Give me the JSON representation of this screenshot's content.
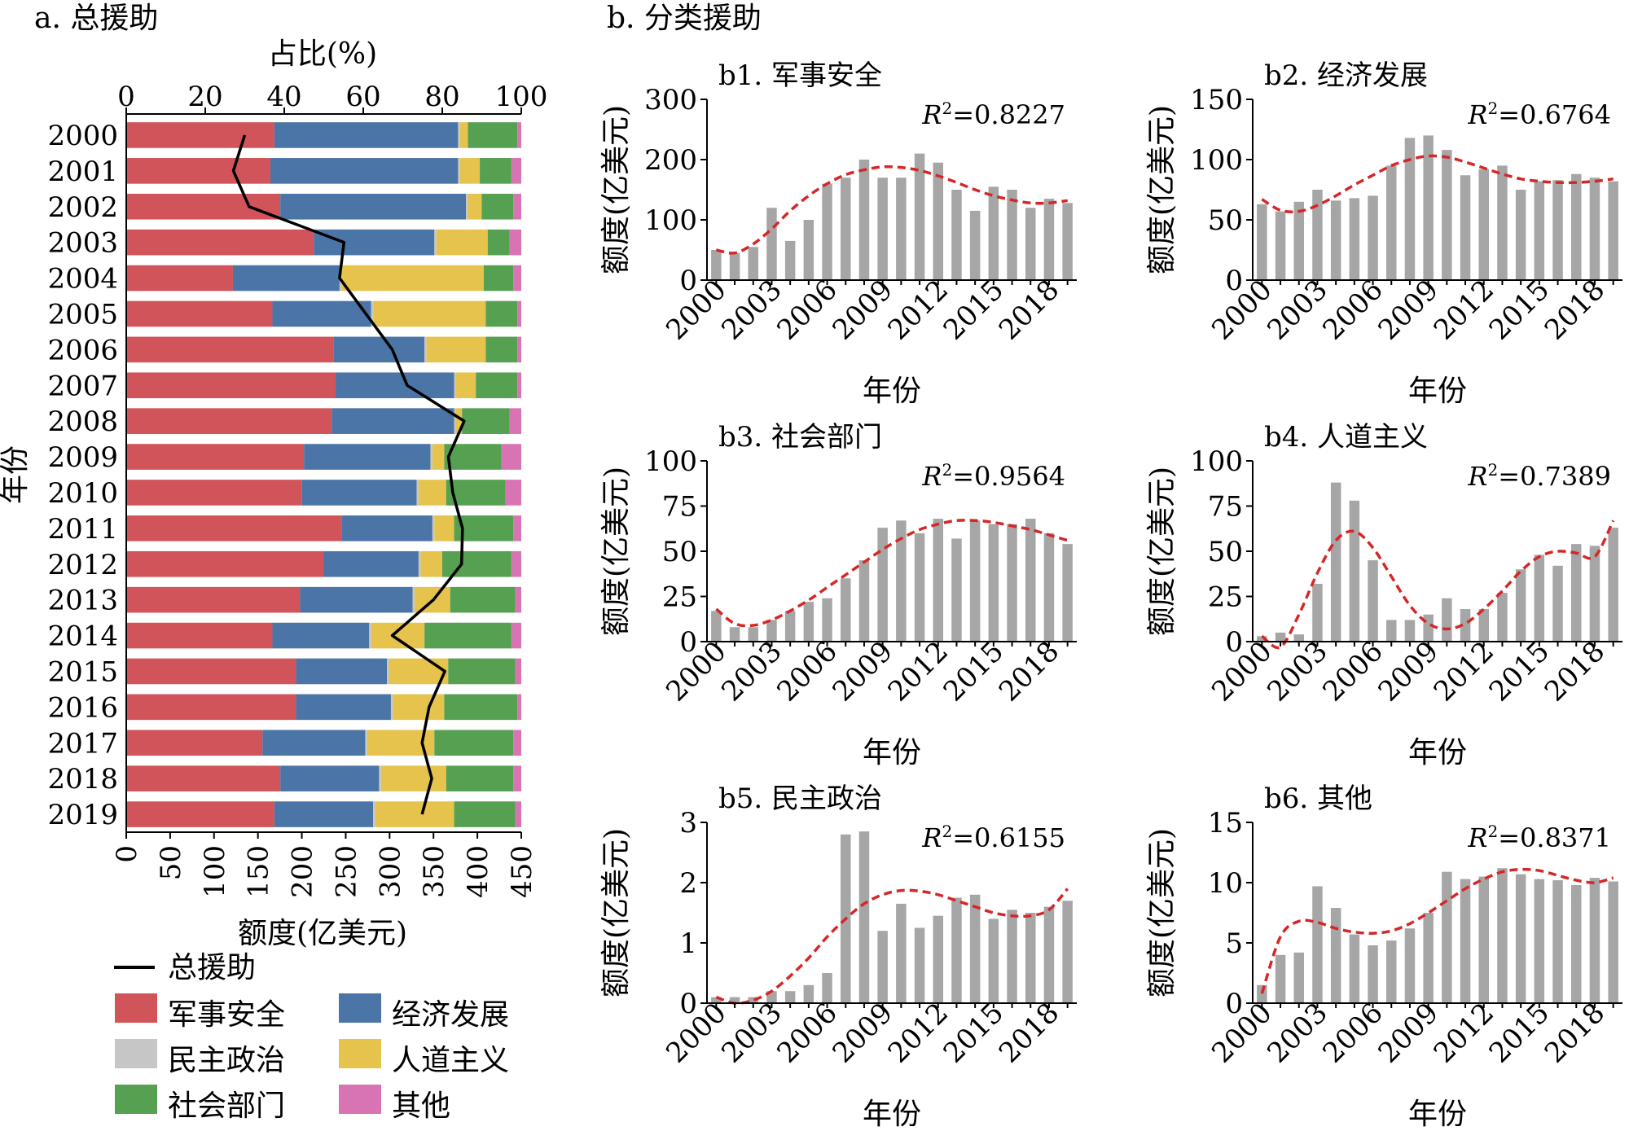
{
  "panel_a": {
    "title": "a. 总援助",
    "top_axis_label": "占比(%)",
    "bottom_axis_label": "额度(亿美元)",
    "y_axis_label": "年份"
  },
  "panel_b": {
    "title": "b. 分类援助"
  },
  "legend": {
    "items": [
      {
        "label": "总援助",
        "kind": "line",
        "color": "#000000"
      },
      {
        "label": "军事安全",
        "kind": "box",
        "color": "#d05459"
      },
      {
        "label": "经济发展",
        "kind": "box",
        "color": "#4a75a6"
      },
      {
        "label": "民主政治",
        "kind": "box",
        "color": "#c6c6c6"
      },
      {
        "label": "人道主义",
        "kind": "box",
        "color": "#e5c34d"
      },
      {
        "label": "社会部门",
        "kind": "box",
        "color": "#55a051"
      },
      {
        "label": "其他",
        "kind": "box",
        "color": "#d974b4"
      }
    ]
  },
  "chart_data": [
    {
      "id": "a",
      "type": "bar",
      "orientation": "horizontal-stacked-percent",
      "title": "a. 总援助",
      "categories": [
        "2000",
        "2001",
        "2002",
        "2003",
        "2004",
        "2005",
        "2006",
        "2007",
        "2008",
        "2009",
        "2010",
        "2011",
        "2012",
        "2013",
        "2014",
        "2015",
        "2016",
        "2017",
        "2018",
        "2019"
      ],
      "pct_axis": {
        "label": "占比(%)",
        "lim": [
          0,
          100
        ],
        "ticks": [
          "0",
          "20",
          "40",
          "60",
          "80",
          "100"
        ]
      },
      "amount_axis": {
        "label": "额度(亿美元)",
        "lim": [
          0,
          450
        ],
        "ticks": [
          "0",
          "50",
          "100",
          "150",
          "200",
          "250",
          "300",
          "350",
          "400",
          "450"
        ]
      },
      "ylabel": "年份",
      "colors": {
        "军事安全": "#d05459",
        "经济发展": "#4a75a6",
        "民主政治": "#c6c6c6",
        "人道主义": "#e5c34d",
        "社会部门": "#55a051",
        "其他": "#d974b4"
      },
      "series": [
        {
          "name": "军事安全",
          "values": [
            37.5,
            36.5,
            39,
            47.5,
            27,
            37,
            52.5,
            53,
            52,
            45,
            44.5,
            54.5,
            50,
            44,
            37,
            43,
            43,
            34.5,
            39,
            37.5
          ]
        },
        {
          "name": "经济发展",
          "values": [
            46.5,
            47.5,
            47,
            30.5,
            27,
            25,
            23,
            30,
            31,
            32,
            29,
            23,
            24,
            28.5,
            24.5,
            23,
            24,
            26,
            25,
            25
          ]
        },
        {
          "name": "民主政治",
          "values": [
            0.5,
            0.5,
            0.5,
            0.5,
            0.5,
            0.5,
            0.5,
            0.5,
            0.5,
            0.5,
            0.5,
            0.5,
            0.5,
            0.5,
            0.5,
            0.5,
            0.5,
            0.5,
            0.5,
            0.5
          ]
        },
        {
          "name": "人道主义",
          "values": [
            2,
            5,
            3.5,
            13,
            36,
            28.5,
            15,
            5,
            1.5,
            3,
            7,
            5,
            5.5,
            9,
            13.5,
            15,
            13,
            17,
            16.5,
            20
          ]
        },
        {
          "name": "社会部门",
          "values": [
            12.5,
            8,
            8,
            5.5,
            7.5,
            8,
            8,
            10.5,
            12,
            14.5,
            15,
            15,
            17.5,
            16.5,
            22,
            17,
            18.5,
            20,
            17,
            15.5
          ]
        },
        {
          "name": "其他",
          "values": [
            1,
            2.5,
            2,
            3,
            2,
            1,
            1,
            1,
            3,
            5,
            4,
            2,
            2.5,
            1.5,
            2.5,
            1.5,
            1,
            2,
            2,
            1.5
          ]
        }
      ],
      "total_line": {
        "name": "总援助",
        "values": [
          135,
          122,
          140,
          248,
          243,
          273,
          303,
          320,
          385,
          367,
          372,
          383,
          382,
          350,
          303,
          363,
          345,
          337,
          348,
          337
        ],
        "color": "#000000"
      }
    },
    {
      "id": "b1",
      "type": "bar",
      "title": "b1. 军事安全",
      "r2_prefix": "R",
      "r2_exp": "2",
      "r2_value": "=0.8227",
      "x": [
        2000,
        2001,
        2002,
        2003,
        2004,
        2005,
        2006,
        2007,
        2008,
        2009,
        2010,
        2011,
        2012,
        2013,
        2014,
        2015,
        2016,
        2017,
        2018,
        2019
      ],
      "values": [
        50,
        45,
        55,
        120,
        65,
        100,
        160,
        170,
        200,
        170,
        170,
        210,
        195,
        150,
        115,
        155,
        150,
        120,
        135,
        128
      ],
      "trend": [
        50,
        45,
        60,
        85,
        115,
        140,
        160,
        175,
        183,
        188,
        187,
        182,
        173,
        162,
        150,
        140,
        133,
        128,
        128,
        132
      ],
      "ylim": [
        0,
        300
      ],
      "yticks": [
        0,
        100,
        200,
        300
      ],
      "xticks": [
        2000,
        2003,
        2006,
        2009,
        2012,
        2015,
        2018
      ],
      "xlabel": "年份",
      "ylabel": "额度(亿美元)"
    },
    {
      "id": "b2",
      "type": "bar",
      "title": "b2. 经济发展",
      "r2_prefix": "R",
      "r2_exp": "2",
      "r2_value": "=0.6764",
      "x": [
        2000,
        2001,
        2002,
        2003,
        2004,
        2005,
        2006,
        2007,
        2008,
        2009,
        2010,
        2011,
        2012,
        2013,
        2014,
        2015,
        2016,
        2017,
        2018,
        2019
      ],
      "values": [
        63,
        57,
        65,
        75,
        66,
        68,
        70,
        95,
        118,
        120,
        108,
        87,
        92,
        95,
        75,
        82,
        83,
        88,
        85,
        82
      ],
      "trend": [
        67,
        58,
        57,
        62,
        70,
        79,
        87,
        95,
        100,
        103,
        102,
        98,
        93,
        88,
        84,
        82,
        81,
        81,
        82,
        84
      ],
      "ylim": [
        0,
        150
      ],
      "yticks": [
        0,
        50,
        100,
        150
      ],
      "xticks": [
        2000,
        2003,
        2006,
        2009,
        2012,
        2015,
        2018
      ],
      "xlabel": "年份",
      "ylabel": "额度(亿美元)"
    },
    {
      "id": "b3",
      "type": "bar",
      "title": "b3. 社会部门",
      "r2_prefix": "R",
      "r2_exp": "2",
      "r2_value": "=0.9564",
      "x": [
        2000,
        2001,
        2002,
        2003,
        2004,
        2005,
        2006,
        2007,
        2008,
        2009,
        2010,
        2011,
        2012,
        2013,
        2014,
        2015,
        2016,
        2017,
        2018,
        2019
      ],
      "values": [
        17,
        8,
        8,
        12,
        17,
        22,
        24,
        35,
        45,
        63,
        67,
        60,
        68,
        57,
        67,
        65,
        65,
        68,
        60,
        54
      ],
      "trend": [
        18,
        10,
        9,
        12,
        17,
        23,
        30,
        37,
        44,
        51,
        57,
        62,
        65,
        67,
        67,
        66,
        64,
        62,
        59,
        56
      ],
      "ylim": [
        0,
        100
      ],
      "yticks": [
        0,
        25,
        50,
        75,
        100
      ],
      "xticks": [
        2000,
        2003,
        2006,
        2009,
        2012,
        2015,
        2018
      ],
      "xlabel": "年份",
      "ylabel": "额度(亿美元)"
    },
    {
      "id": "b4",
      "type": "bar",
      "title": "b4. 人道主义",
      "r2_prefix": "R",
      "r2_exp": "2",
      "r2_value": "=0.7389",
      "x": [
        2000,
        2001,
        2002,
        2003,
        2004,
        2005,
        2006,
        2007,
        2008,
        2009,
        2010,
        2011,
        2012,
        2013,
        2014,
        2015,
        2016,
        2017,
        2018,
        2019
      ],
      "values": [
        3,
        5,
        4,
        32,
        88,
        78,
        45,
        12,
        12,
        15,
        24,
        18,
        18,
        27,
        40,
        48,
        42,
        54,
        53,
        63
      ],
      "trend": [
        3,
        -3,
        15,
        38,
        56,
        61,
        52,
        36,
        20,
        10,
        7,
        10,
        18,
        28,
        39,
        47,
        50,
        49,
        47,
        67
      ],
      "ylim": [
        0,
        100
      ],
      "yticks": [
        0,
        25,
        50,
        75,
        100
      ],
      "xticks": [
        2000,
        2003,
        2006,
        2009,
        2012,
        2015,
        2018
      ],
      "xlabel": "年份",
      "ylabel": "额度(亿美元)"
    },
    {
      "id": "b5",
      "type": "bar",
      "title": "b5. 民主政治",
      "r2_prefix": "R",
      "r2_exp": "2",
      "r2_value": "=0.6155",
      "x": [
        2000,
        2001,
        2002,
        2003,
        2004,
        2005,
        2006,
        2007,
        2008,
        2009,
        2010,
        2011,
        2012,
        2013,
        2014,
        2015,
        2016,
        2017,
        2018,
        2019
      ],
      "values": [
        0.1,
        0.1,
        0.1,
        0.2,
        0.2,
        0.3,
        0.5,
        2.8,
        2.85,
        1.2,
        1.65,
        1.25,
        1.45,
        1.75,
        1.8,
        1.4,
        1.55,
        1.5,
        1.6,
        1.7
      ],
      "trend": [
        0.1,
        0.0,
        0.05,
        0.2,
        0.45,
        0.75,
        1.1,
        1.4,
        1.65,
        1.8,
        1.87,
        1.86,
        1.8,
        1.7,
        1.6,
        1.5,
        1.45,
        1.45,
        1.55,
        1.9
      ],
      "ylim": [
        0,
        3
      ],
      "yticks": [
        0,
        1,
        2,
        3
      ],
      "xticks": [
        2000,
        2003,
        2006,
        2009,
        2012,
        2015,
        2018
      ],
      "xlabel": "年份",
      "ylabel": "额度(亿美元)"
    },
    {
      "id": "b6",
      "type": "bar",
      "title": "b6. 其他",
      "r2_prefix": "R",
      "r2_exp": "2",
      "r2_value": "=0.8371",
      "x": [
        2000,
        2001,
        2002,
        2003,
        2004,
        2005,
        2006,
        2007,
        2008,
        2009,
        2010,
        2011,
        2012,
        2013,
        2014,
        2015,
        2016,
        2017,
        2018,
        2019
      ],
      "values": [
        1.5,
        4,
        4.2,
        9.7,
        7.9,
        5.7,
        4.8,
        5.2,
        6.2,
        7.5,
        10.9,
        10.3,
        10.5,
        11.2,
        10.7,
        10.3,
        10.2,
        9.8,
        10.4,
        10.1
      ],
      "trend": [
        0.8,
        5.5,
        6.8,
        6.7,
        6.2,
        5.9,
        5.8,
        6.0,
        6.6,
        7.5,
        8.5,
        9.5,
        10.3,
        10.9,
        11.1,
        11.0,
        10.6,
        10.2,
        10.0,
        10.4
      ],
      "ylim": [
        0,
        15
      ],
      "yticks": [
        0,
        5,
        10,
        15
      ],
      "xticks": [
        2000,
        2003,
        2006,
        2009,
        2012,
        2015,
        2018
      ],
      "xlabel": "年份",
      "ylabel": "额度(亿美元)"
    }
  ]
}
